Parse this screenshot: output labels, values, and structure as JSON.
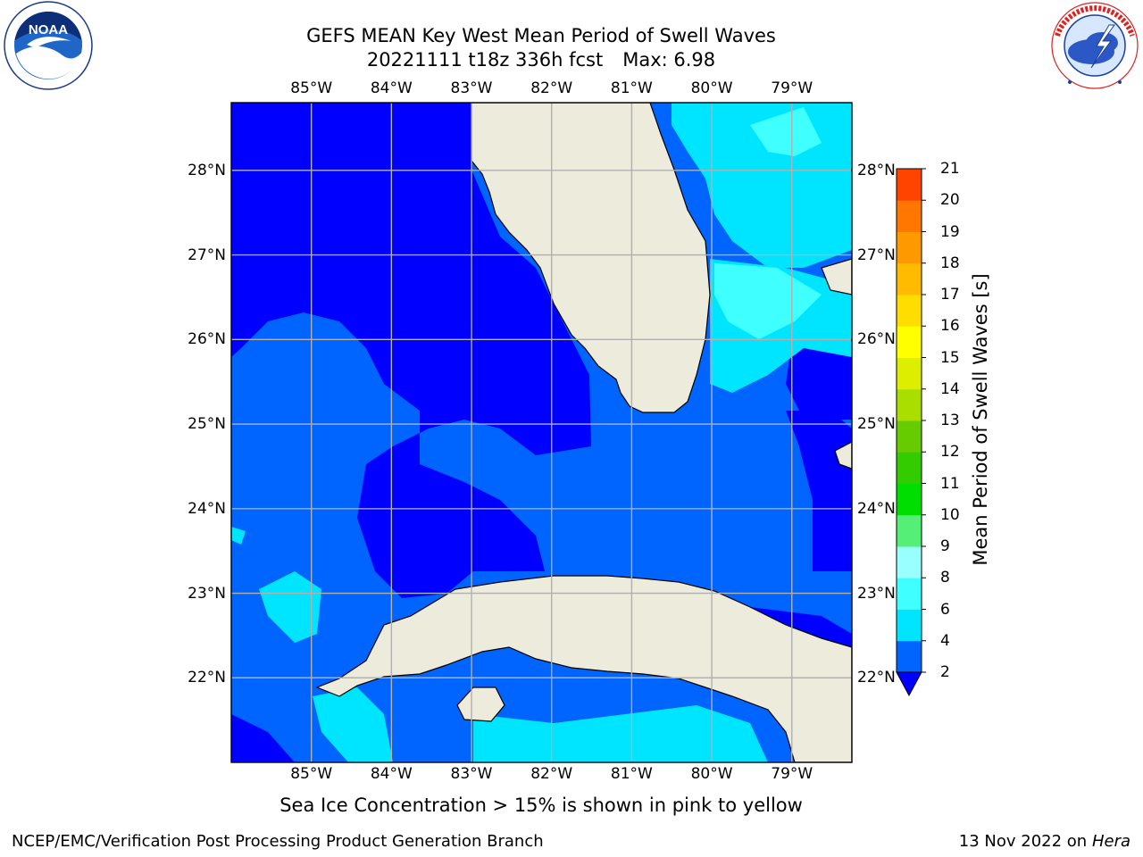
{
  "title": {
    "line1": "GEFS MEAN Key West Mean Period of Swell Waves",
    "line2_run": "20221111 t18z 336h fcst",
    "line2_max": "Max: 6.98"
  },
  "caption": "Sea Ice Concentration > 15% is shown in pink to yellow",
  "footer": {
    "left": "NCEP/EMC/Verification Post Processing Product Generation Branch",
    "date": "13 Nov 2022 on",
    "machine": "Hera"
  },
  "map": {
    "lon_labels": [
      "85°W",
      "84°W",
      "83°W",
      "82°W",
      "81°W",
      "80°W",
      "79°W"
    ],
    "lon_values": [
      -85,
      -84,
      -83,
      -82,
      -81,
      -80,
      -79
    ],
    "lat_labels": [
      "28°N",
      "27°N",
      "26°N",
      "25°N",
      "24°N",
      "23°N",
      "22°N"
    ],
    "lat_values": [
      28,
      27,
      26,
      25,
      24,
      23,
      22
    ],
    "lon_range": [
      -86.0,
      -78.25
    ],
    "lat_range": [
      21.0,
      28.8
    ],
    "land_color": "#ecebdc",
    "gridline_color": "#b0b0b0"
  },
  "colorbar": {
    "title": "Mean Period of Swell Waves [s]",
    "levels": [
      "2",
      "4",
      "6",
      "8",
      "9",
      "10",
      "11",
      "12",
      "13",
      "14",
      "15",
      "16",
      "17",
      "18",
      "19",
      "20",
      "21"
    ],
    "colors": [
      "#0064ff",
      "#00e5ff",
      "#40ffff",
      "#99ffff",
      "#55ee77",
      "#00dd00",
      "#33cc00",
      "#66cc00",
      "#aadd00",
      "#ddee00",
      "#ffff00",
      "#ffdd00",
      "#ffbb00",
      "#ff9900",
      "#ff7700",
      "#ff4400"
    ],
    "under_color": "#0000ff",
    "over_color": "#ff0000",
    "extend": "both"
  },
  "logos": {
    "noaa_text": "NOAA",
    "noaa_ring": "NATIONAL OCEANIC AND ATMOSPHERIC ADMINISTRATION · U.S. DEPARTMENT OF COMMERCE",
    "nws_ring": "NATIONAL WEATHER SERVICE"
  }
}
